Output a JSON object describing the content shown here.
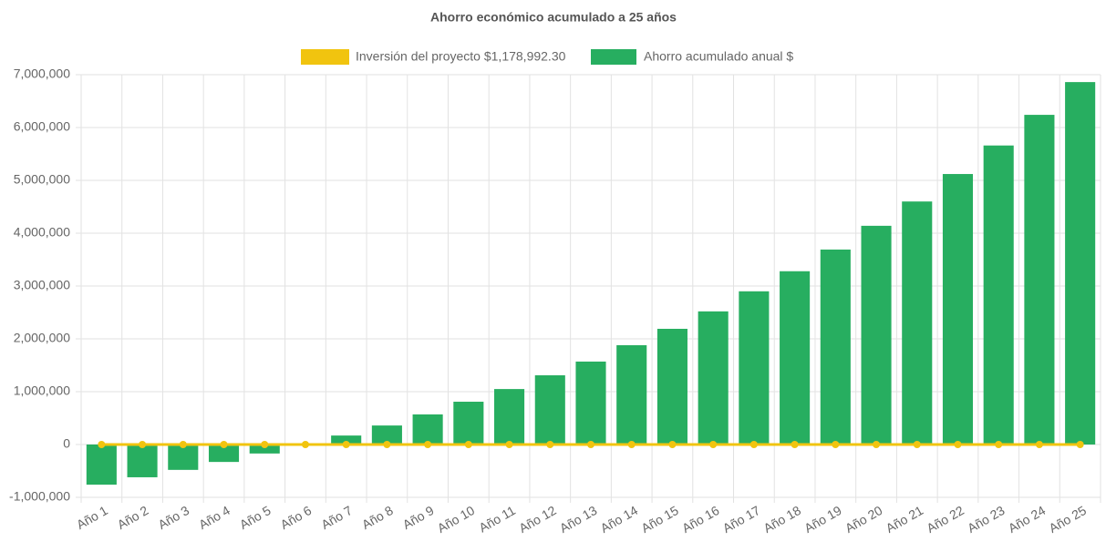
{
  "chart_data": {
    "type": "bar-line",
    "title": "Ahorro económico acumulado a 25 años",
    "categories": [
      "Año 1",
      "Año 2",
      "Año 3",
      "Año 4",
      "Año 5",
      "Año 6",
      "Año 7",
      "Año 8",
      "Año 9",
      "Año 10",
      "Año 11",
      "Año 12",
      "Año 13",
      "Año 14",
      "Año 15",
      "Año 16",
      "Año 17",
      "Año 18",
      "Año 19",
      "Año 20",
      "Año 21",
      "Año 22",
      "Año 23",
      "Año 24",
      "Año 25"
    ],
    "series": [
      {
        "name": "Inversión del proyecto $1,178,992.30",
        "type": "line",
        "color": "#f1c40f",
        "values": [
          0,
          0,
          0,
          0,
          0,
          0,
          0,
          0,
          0,
          0,
          0,
          0,
          0,
          0,
          0,
          0,
          0,
          0,
          0,
          0,
          0,
          0,
          0,
          0,
          0
        ]
      },
      {
        "name": "Ahorro acumulado anual $",
        "type": "bar",
        "color": "#27ae60",
        "values": [
          -760000,
          -620000,
          -480000,
          -330000,
          -170000,
          0,
          170000,
          360000,
          570000,
          810000,
          1050000,
          1310000,
          1570000,
          1880000,
          2190000,
          2520000,
          2900000,
          3280000,
          3690000,
          4140000,
          4600000,
          5120000,
          5660000,
          6240000,
          6860000
        ]
      }
    ],
    "ylim": [
      -1000000,
      7000000
    ],
    "yticks": [
      {
        "value": -1000000,
        "label": "-1,000,000"
      },
      0,
      {
        "value": 1000000,
        "label": "1,000,000"
      },
      {
        "value": 2000000,
        "label": "2,000,000"
      },
      {
        "value": 3000000,
        "label": "3,000,000"
      },
      {
        "value": 4000000,
        "label": "4,000,000"
      },
      {
        "value": 5000000,
        "label": "5,000,000"
      },
      {
        "value": 6000000,
        "label": "6,000,000"
      },
      {
        "value": 7000000,
        "label": "7,000,000"
      }
    ],
    "grid": true
  }
}
